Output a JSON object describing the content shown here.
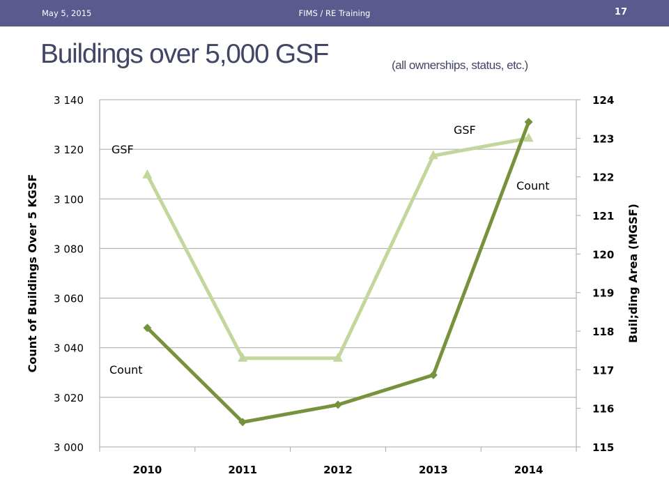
{
  "header": {
    "date": "May 5, 2015",
    "center": "FIMS / RE Training",
    "page_number": "17"
  },
  "slide": {
    "title": "Buildings over 5,000 GSF",
    "subtitle": "(all ownerships, status, etc.)"
  },
  "colors": {
    "topbar": "#5b5a8e",
    "title": "#414566",
    "count_series": "#76923c",
    "gsf_series": "#c3d69b",
    "gridline": "#a6a6a6"
  },
  "chart_data": {
    "type": "line",
    "categories": [
      "2010",
      "2011",
      "2012",
      "2013",
      "2014"
    ],
    "ylabel_left": "Count of Buildings Over 5 KGSF",
    "ylabel_right": "Buil;ding Area (MGSF)",
    "y_left": {
      "range": [
        3000,
        3140
      ],
      "ticks": [
        3000,
        3020,
        3040,
        3060,
        3080,
        3100,
        3120,
        3140
      ],
      "tick_labels": [
        "3 000",
        "3 020",
        "3 040",
        "3 060",
        "3 080",
        "3 100",
        "3 120",
        "3 140"
      ]
    },
    "y_right": {
      "range": [
        115,
        124
      ],
      "ticks": [
        115,
        116,
        117,
        118,
        119,
        120,
        121,
        122,
        123,
        124
      ],
      "tick_labels": [
        "115",
        "116",
        "117",
        "118",
        "119",
        "120",
        "121",
        "122",
        "123",
        "124"
      ]
    },
    "grid": true,
    "series": [
      {
        "name": "Count",
        "axis": "left",
        "marker": "diamond",
        "color": "#76923c",
        "values": [
          3048,
          3010,
          3017,
          3029,
          3131
        ]
      },
      {
        "name": "GSF",
        "axis": "right",
        "marker": "triangle",
        "color": "#c3d69b",
        "values": [
          122.05,
          117.3,
          117.3,
          122.55,
          123.0
        ]
      }
    ],
    "annotations": [
      {
        "text": "GSF",
        "near": "2010-top-left"
      },
      {
        "text": "Count",
        "near": "2010-bottom-left"
      },
      {
        "text": "GSF",
        "near": "2013-top"
      },
      {
        "text": "Count",
        "near": "2014-right"
      }
    ]
  }
}
